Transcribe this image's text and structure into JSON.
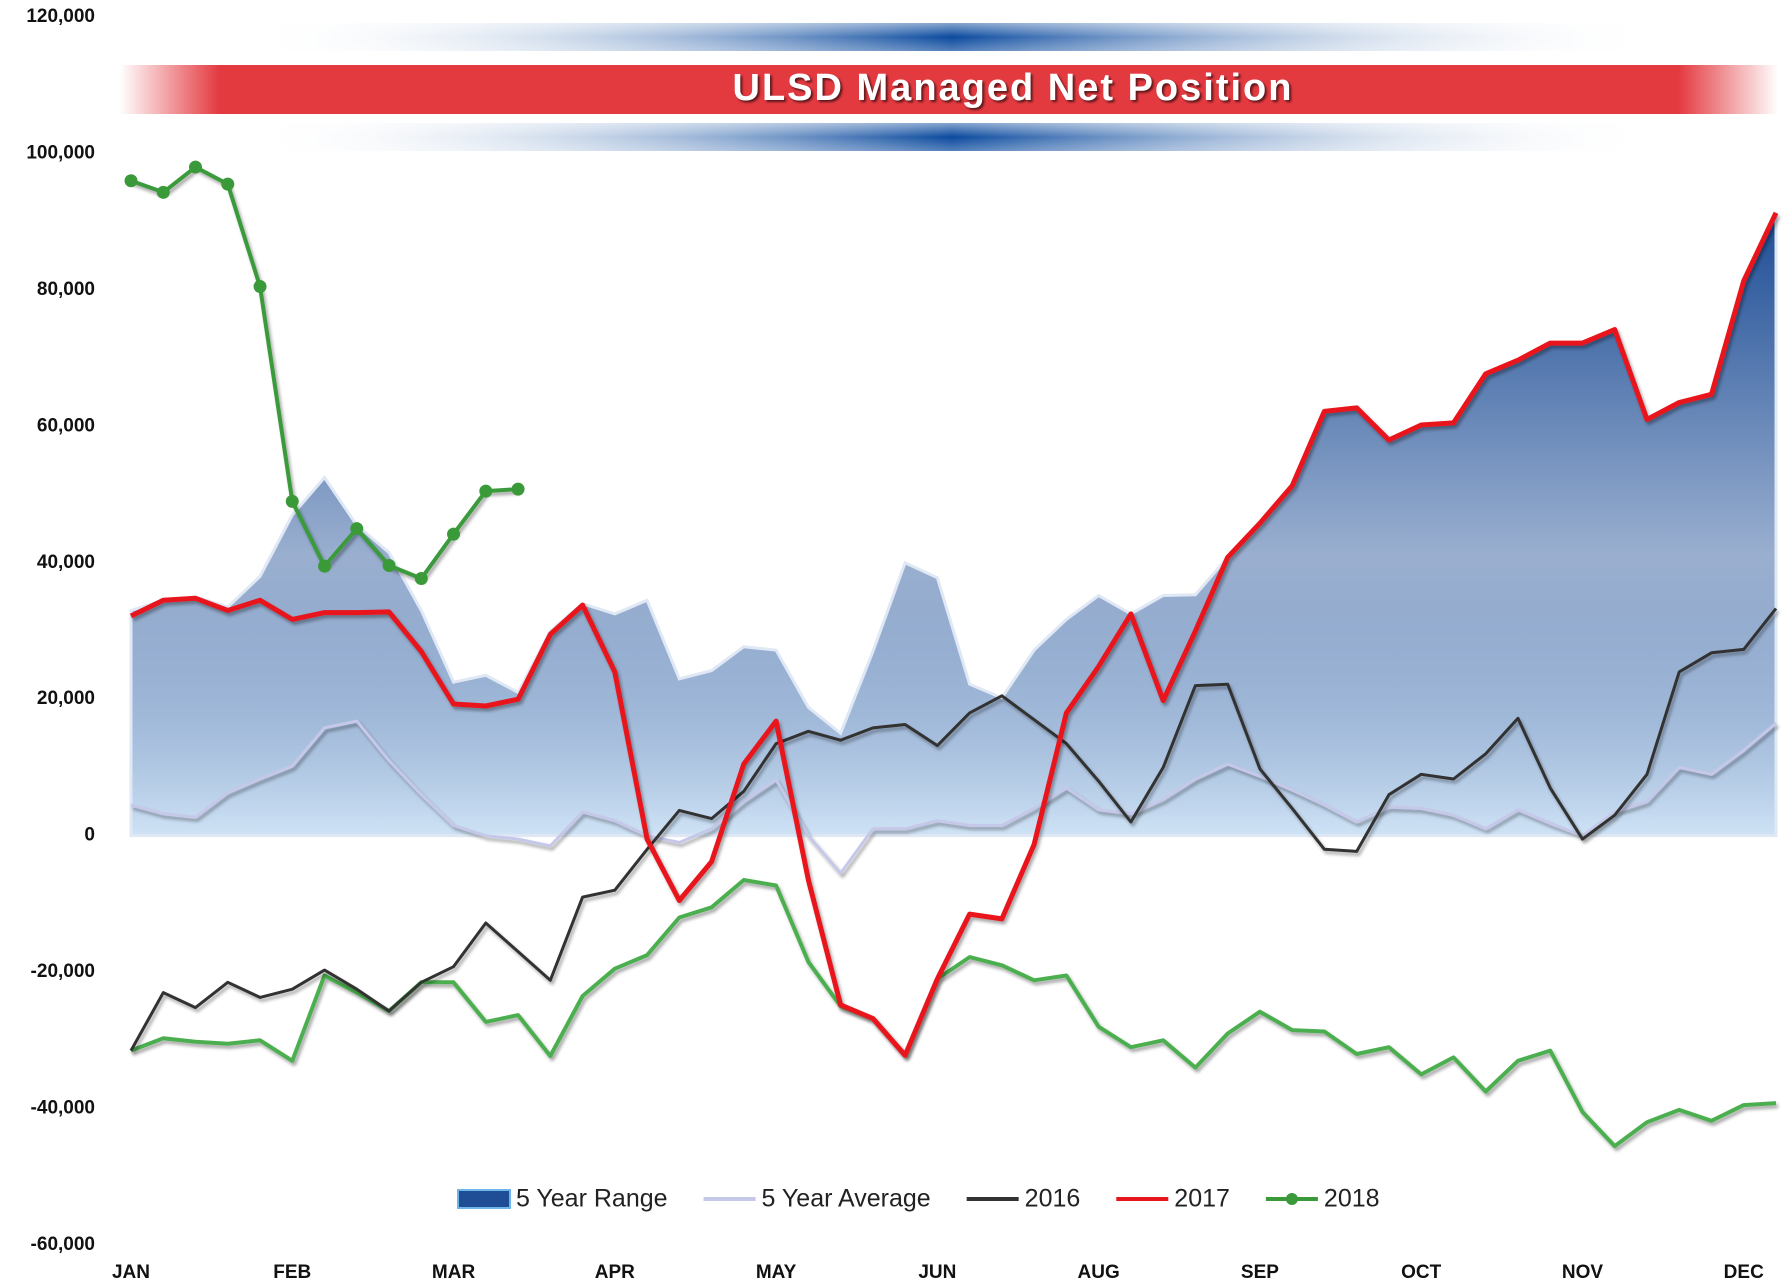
{
  "chart_data": {
    "type": "line",
    "title": "ULSD Managed Net Position",
    "categories": [
      "JAN",
      null,
      null,
      null,
      null,
      "FEB",
      null,
      null,
      null,
      null,
      "MAR",
      null,
      null,
      null,
      null,
      "APR",
      null,
      null,
      null,
      null,
      "MAY",
      null,
      null,
      null,
      null,
      "JUN",
      null,
      null,
      null,
      null,
      "AUG",
      null,
      null,
      null,
      null,
      "SEP",
      null,
      null,
      null,
      null,
      "OCT",
      null,
      null,
      null,
      null,
      "NOV",
      null,
      null,
      null,
      null,
      "DEC",
      null
    ],
    "ylim": [
      -60000,
      120000
    ],
    "yticks": [
      {
        "value": -60000,
        "label": "-60,000"
      },
      {
        "value": -40000,
        "label": "-40,000"
      },
      {
        "value": -20000,
        "label": "-20,000"
      },
      0,
      {
        "value": 20000,
        "label": "20,000"
      },
      {
        "value": 40000,
        "label": "40,000"
      },
      {
        "value": 60000,
        "label": "60,000"
      },
      {
        "value": 80000,
        "label": "80,000"
      },
      {
        "value": 100000,
        "label": "100,000"
      },
      {
        "value": 120000,
        "label": "120,000"
      }
    ],
    "grid": false,
    "legend": "bottom",
    "series": [
      {
        "name": "5 Year Range",
        "color": "#1f4e96",
        "low_color": "#4caf50",
        "values": [
          33000,
          34500,
          35000,
          33500,
          38000,
          47000,
          52500,
          45500,
          41500,
          33000,
          22500,
          23500,
          21000,
          30000,
          34000,
          32500,
          34500,
          23000,
          24200,
          27700,
          27200,
          18800,
          15000,
          27000,
          40000,
          37800,
          22200,
          20200,
          27200,
          31700,
          35200,
          32500,
          35200,
          35300,
          40800,
          45800,
          51300,
          62200,
          62700,
          58000,
          60200,
          60500,
          67700,
          69700,
          72200,
          72200,
          74200,
          61000,
          63500,
          64700,
          81300,
          91000
        ],
        "low": [
          -31500,
          -29700,
          -30200,
          -30500,
          -30000,
          -33000,
          -20500,
          -23000,
          -25700,
          -21500,
          -21500,
          -27300,
          -26300,
          -32300,
          -23500,
          -19500,
          -17500,
          -12000,
          -10500,
          -6500,
          -7300,
          -18500,
          -25000,
          -26800,
          -32200,
          -21000,
          -17800,
          -19000,
          -21200,
          -20500,
          -28000,
          -31000,
          -30000,
          -34000,
          -29000,
          -25800,
          -28500,
          -28700,
          -32000,
          -31000,
          -35000,
          -32500,
          -37500,
          -33000,
          -31500,
          -40500,
          -45500,
          -42000,
          -40200,
          -41800,
          -39500,
          -39200
        ]
      },
      {
        "name": "5 Year Average",
        "color": "#c5c8e8",
        "values": [
          4500,
          3200,
          2700,
          6300,
          8300,
          10200,
          15800,
          16800,
          11000,
          6000,
          1500,
          0,
          -500,
          -1500,
          3500,
          2200,
          0,
          -1000,
          1000,
          5000,
          8200,
          0,
          -5500,
          1000,
          1000,
          2200,
          1500,
          1500,
          4000,
          7000,
          3800,
          3200,
          5300,
          8300,
          10500,
          8700,
          6700,
          4500,
          2000,
          4200,
          4000,
          3000,
          1000,
          3800,
          1800,
          0,
          3500,
          5000,
          10000,
          9000,
          12500,
          16500
        ]
      },
      {
        "name": "2016",
        "color": "#333333",
        "values": [
          -31500,
          -23000,
          -25200,
          -21500,
          -23700,
          -22500,
          -19700,
          -22500,
          -25700,
          -21500,
          -19200,
          -12800,
          -17000,
          -21200,
          -9000,
          -8000,
          -2000,
          3700,
          2500,
          6500,
          13500,
          15300,
          14000,
          15800,
          16300,
          13200,
          18000,
          20500,
          17000,
          13500,
          8000,
          2000,
          10000,
          22000,
          22200,
          9800,
          4000,
          -2000,
          -2300,
          6000,
          9000,
          8300,
          12000,
          17200,
          7000,
          -500,
          3000,
          9000,
          24000,
          26800,
          27300,
          33300
        ]
      },
      {
        "name": "2017",
        "color": "#e8141b",
        "values": [
          32200,
          34500,
          34800,
          33000,
          34500,
          31700,
          32700,
          32700,
          32800,
          27000,
          19300,
          19000,
          20000,
          29500,
          33800,
          24000,
          -500,
          -9500,
          -3800,
          10500,
          16800,
          -6500,
          -24800,
          -26800,
          -32200,
          -21000,
          -11500,
          -12200,
          -1300,
          18000,
          24800,
          32500,
          19800,
          30000,
          40800,
          45800,
          51300,
          62200,
          62700,
          58000,
          60200,
          60500,
          67700,
          69700,
          72200,
          72200,
          74200,
          61000,
          63500,
          64700,
          81300,
          91300
        ]
      },
      {
        "name": "2018",
        "color": "#3a9a3a",
        "markers": true,
        "values": [
          96000,
          94300,
          98000,
          95500,
          80500,
          49000,
          39500,
          45000,
          39600,
          37700,
          44200,
          50500,
          50800,
          null,
          null,
          null,
          null,
          null,
          null,
          null,
          null,
          null,
          null,
          null,
          null,
          null,
          null,
          null,
          null,
          null,
          null,
          null,
          null,
          null,
          null,
          null,
          null,
          null,
          null,
          null,
          null,
          null,
          null,
          null,
          null,
          null,
          null,
          null,
          null,
          null,
          null,
          null
        ]
      }
    ]
  }
}
